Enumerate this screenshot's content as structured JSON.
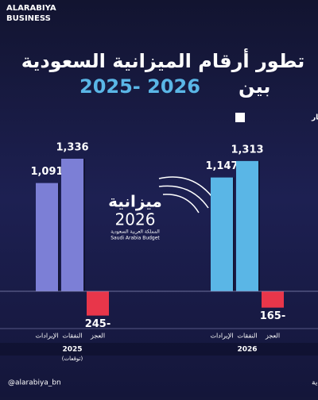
{
  "brand": {
    "line1": "ALARABIYA",
    "line2": "BUSINESS"
  },
  "chart_data": {
    "type": "bar",
    "title": "تطور أرقام الميزانية السعودية",
    "subtitle_prefix": "بين",
    "subtitle_years": "2025- 2026",
    "unit_note": "الأرقام بالمليار",
    "categories": [
      "الإيرادات",
      "النفقات",
      "العجز"
    ],
    "negative_color": "#e8364a",
    "series": [
      {
        "name": "2025",
        "note": "(توقعات)",
        "color": "#7c7fd6",
        "values": [
          1091,
          1336,
          -245
        ],
        "value_labels": [
          "1,091",
          "1,336",
          "245-"
        ]
      },
      {
        "name": "2026",
        "color": "#5ab6e6",
        "values": [
          1147,
          1313,
          -165
        ],
        "value_labels": [
          "1,147",
          "1,313",
          "165-"
        ]
      }
    ]
  },
  "center_logo": {
    "title": "ميزانية",
    "year": "2026",
    "arabic": "المملكة العربية السعودية",
    "english": "Saudi Arabia Budget"
  },
  "footer": {
    "handle": "@alarabiya_bn",
    "source": "المصدر: وزارة المالية السعودية"
  }
}
